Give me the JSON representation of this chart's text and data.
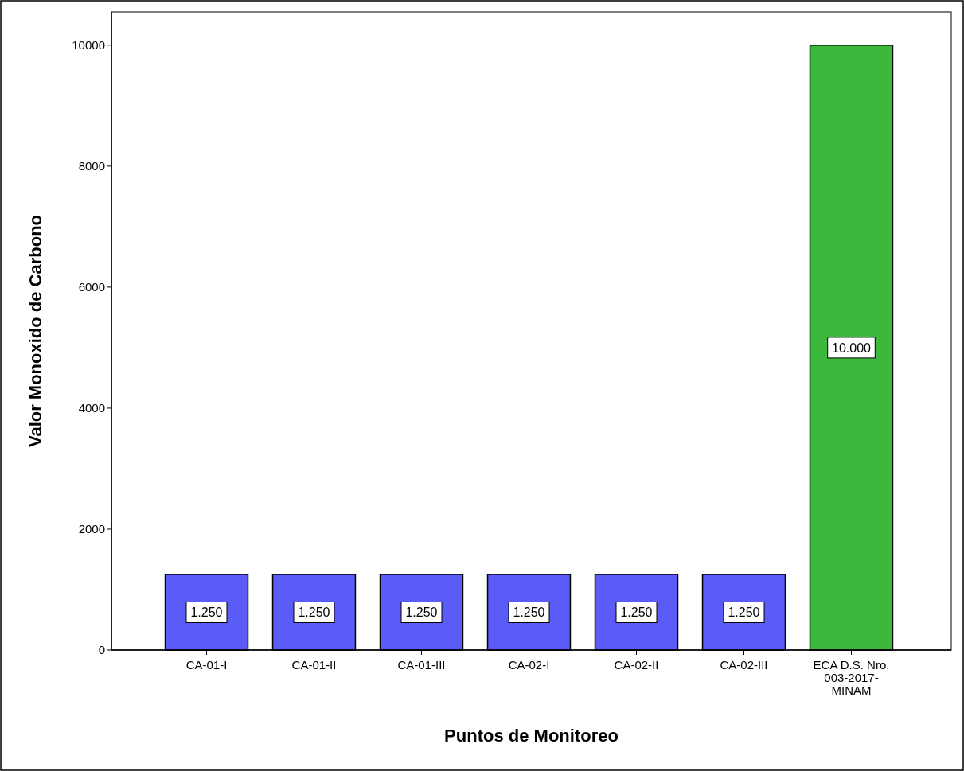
{
  "chart_data": {
    "type": "bar",
    "xlabel": "Puntos de Monitoreo",
    "ylabel": "Valor Monoxido de Carbono",
    "categories": [
      "CA-01-I",
      "CA-01-II",
      "CA-01-III",
      "CA-02-I",
      "CA-02-II",
      "CA-02-III",
      "ECA D.S. Nro. 003-2017-MINAM"
    ],
    "values": [
      1250,
      1250,
      1250,
      1250,
      1250,
      1250,
      10000
    ],
    "colors": [
      "#5b5bf7",
      "#5b5bf7",
      "#5b5bf7",
      "#5b5bf7",
      "#5b5bf7",
      "#5b5bf7",
      "#3cb83c"
    ],
    "value_labels": [
      "1.250",
      "1.250",
      "1.250",
      "1.250",
      "1.250",
      "1.250",
      "10.000"
    ],
    "ylim": [
      0,
      10550
    ],
    "yticks": [
      0,
      2000,
      4000,
      6000,
      8000,
      10000
    ]
  }
}
